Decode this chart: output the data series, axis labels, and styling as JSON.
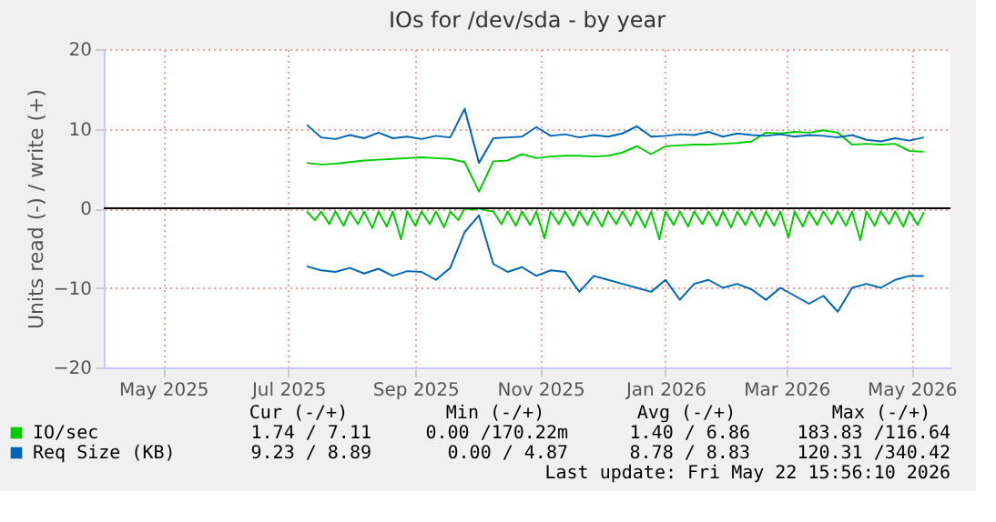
{
  "chart_data": {
    "type": "line",
    "title": "IOs for /dev/sda - by year",
    "ylabel": "Units read (-) / write (+)",
    "xlim": [
      "2025-04-16",
      "2026-06-03"
    ],
    "xticks": [
      {
        "value": "2025-05-15",
        "label": "May 2025"
      },
      {
        "value": "2025-07-15",
        "label": "Jul 2025"
      },
      {
        "value": "2025-09-15",
        "label": "Sep 2025"
      },
      {
        "value": "2025-11-15",
        "label": "Nov 2025"
      },
      {
        "value": "2026-01-15",
        "label": "Jan 2026"
      },
      {
        "value": "2026-03-15",
        "label": "Mar 2026"
      },
      {
        "value": "2026-05-15",
        "label": "May 2026"
      }
    ],
    "ylim": [
      -20,
      20
    ],
    "yticks": [
      -20,
      -10,
      0,
      10,
      20
    ],
    "grid": true,
    "legend": "bottom",
    "marker": "none",
    "line_style": "solid",
    "x": [
      "2025-07-24",
      "2025-07-31",
      "2025-08-07",
      "2025-08-14",
      "2025-08-21",
      "2025-08-28",
      "2025-09-04",
      "2025-09-11",
      "2025-09-18",
      "2025-09-25",
      "2025-10-02",
      "2025-10-09",
      "2025-10-16",
      "2025-10-23",
      "2025-10-30",
      "2025-11-06",
      "2025-11-13",
      "2025-11-20",
      "2025-11-27",
      "2025-12-04",
      "2025-12-11",
      "2025-12-18",
      "2025-12-25",
      "2026-01-01",
      "2026-01-08",
      "2026-01-15",
      "2026-01-22",
      "2026-01-29",
      "2026-02-05",
      "2026-02-12",
      "2026-02-19",
      "2026-02-26",
      "2026-03-05",
      "2026-03-12",
      "2026-03-19",
      "2026-03-26",
      "2026-04-02",
      "2026-04-09",
      "2026-04-16",
      "2026-04-23",
      "2026-04-30",
      "2026-05-07",
      "2026-05-14",
      "2026-05-21"
    ],
    "series": [
      {
        "name": "IO/sec",
        "color": "#00cc00",
        "values": [
          5.7,
          5.5,
          5.6,
          5.8,
          6.0,
          6.1,
          6.2,
          6.3,
          6.4,
          6.3,
          6.2,
          5.8,
          2.1,
          5.9,
          6.0,
          6.8,
          6.3,
          6.5,
          6.6,
          6.6,
          6.5,
          6.6,
          7.0,
          7.8,
          6.8,
          7.8,
          7.9,
          8.0,
          8.0,
          8.1,
          8.2,
          8.4,
          9.5,
          9.4,
          9.6,
          9.5,
          9.8,
          9.5,
          8.0,
          8.1,
          8.0,
          8.1,
          7.2,
          7.1
        ]
      },
      {
        "color": "#00cc00",
        "x": [
          "2025-07-24",
          "2025-07-28",
          "2025-07-31",
          "2025-08-04",
          "2025-08-07",
          "2025-08-11",
          "2025-08-14",
          "2025-08-18",
          "2025-08-21",
          "2025-08-25",
          "2025-08-28",
          "2025-09-01",
          "2025-09-04",
          "2025-09-08",
          "2025-09-11",
          "2025-09-15",
          "2025-09-18",
          "2025-09-22",
          "2025-09-25",
          "2025-09-29",
          "2025-10-02",
          "2025-10-06",
          "2025-10-09",
          "2025-10-13",
          "2025-10-16",
          "2025-10-20",
          "2025-10-23",
          "2025-10-27",
          "2025-10-30",
          "2025-11-03",
          "2025-11-06",
          "2025-11-10",
          "2025-11-13",
          "2025-11-17",
          "2025-11-20",
          "2025-11-24",
          "2025-11-27",
          "2025-12-01",
          "2025-12-04",
          "2025-12-08",
          "2025-12-11",
          "2025-12-15",
          "2025-12-18",
          "2025-12-22",
          "2025-12-25",
          "2025-12-29",
          "2026-01-01",
          "2026-01-05",
          "2026-01-08",
          "2026-01-12",
          "2026-01-15",
          "2026-01-19",
          "2026-01-22",
          "2026-01-26",
          "2026-01-29",
          "2026-02-02",
          "2026-02-05",
          "2026-02-09",
          "2026-02-12",
          "2026-02-16",
          "2026-02-19",
          "2026-02-23",
          "2026-02-26",
          "2026-03-02",
          "2026-03-05",
          "2026-03-09",
          "2026-03-12",
          "2026-03-16",
          "2026-03-19",
          "2026-03-23",
          "2026-03-26",
          "2026-03-30",
          "2026-04-02",
          "2026-04-06",
          "2026-04-09",
          "2026-04-13",
          "2026-04-16",
          "2026-04-20",
          "2026-04-23",
          "2026-04-27",
          "2026-04-30",
          "2026-05-04",
          "2026-05-07",
          "2026-05-11",
          "2026-05-14",
          "2026-05-18",
          "2026-05-21"
        ],
        "values": [
          -0.4,
          -1.5,
          -0.4,
          -2.0,
          -0.4,
          -2.2,
          -0.4,
          -2.0,
          -0.4,
          -2.5,
          -0.4,
          -2.3,
          -0.4,
          -3.9,
          -0.4,
          -2.2,
          -0.4,
          -2.0,
          -0.4,
          -2.4,
          -0.4,
          -1.5,
          0.0,
          -0.2,
          0.0,
          -0.3,
          -0.4,
          -2.0,
          -0.4,
          -2.2,
          -0.4,
          -2.1,
          -0.4,
          -3.8,
          -0.4,
          -2.0,
          -0.4,
          -2.2,
          -0.4,
          -2.1,
          -0.4,
          -2.3,
          -0.4,
          -2.0,
          -0.4,
          -2.2,
          -0.4,
          -2.4,
          -0.4,
          -3.9,
          -0.4,
          -2.1,
          -0.4,
          -2.3,
          -0.4,
          -2.0,
          -0.4,
          -2.2,
          -0.4,
          -2.4,
          -0.4,
          -2.1,
          -0.4,
          -2.3,
          -0.4,
          -2.2,
          -0.4,
          -3.7,
          -0.4,
          -2.3,
          -0.4,
          -2.1,
          -0.4,
          -2.0,
          -0.4,
          -2.2,
          -0.4,
          -4.0,
          -0.4,
          -2.2,
          -0.4,
          -2.0,
          -0.4,
          -2.3,
          -0.4,
          -2.1,
          -0.5
        ]
      },
      {
        "name": "Req Size (KB)",
        "color": "#0066b3",
        "values": [
          10.5,
          8.9,
          8.7,
          9.2,
          8.8,
          9.5,
          8.8,
          9.0,
          8.7,
          9.1,
          8.9,
          12.5,
          5.7,
          8.8,
          8.9,
          9.0,
          10.2,
          9.1,
          9.3,
          8.9,
          9.2,
          9.0,
          9.4,
          10.3,
          9.0,
          9.1,
          9.3,
          9.2,
          9.6,
          9.0,
          9.4,
          9.2,
          9.1,
          9.3,
          9.0,
          9.2,
          9.1,
          8.9,
          9.2,
          8.6,
          8.4,
          8.8,
          8.5,
          8.9
        ]
      },
      {
        "color": "#0066b3",
        "values": [
          -7.3,
          -7.8,
          -8.0,
          -7.5,
          -8.2,
          -7.6,
          -8.5,
          -7.9,
          -8.0,
          -9.0,
          -7.5,
          -3.0,
          -0.9,
          -7.0,
          -8.0,
          -7.4,
          -8.5,
          -7.8,
          -8.0,
          -10.5,
          -8.5,
          -9.0,
          -9.5,
          -10.0,
          -10.5,
          -9.0,
          -11.5,
          -9.5,
          -9.0,
          -10.0,
          -9.5,
          -10.2,
          -11.5,
          -10.0,
          -11.0,
          -12.0,
          -11.0,
          -13.0,
          -10.0,
          -9.5,
          -10.0,
          -9.0,
          -8.5,
          -8.5
        ]
      }
    ],
    "ref_lines": [
      {
        "axis": "y",
        "value": 0,
        "color": "#000000"
      }
    ],
    "annotations": [
      "Cur (-/+)",
      "Min (-/+)",
      "Avg (-/+)",
      "Max (-/+)",
      "1.74 /  7.11",
      "0.00 /170.22m",
      "1.40 /  6.86",
      "183.83 /116.64",
      "9.23 /  8.89",
      "0.00 /  4.87",
      "8.78 /  8.83",
      "120.31 /340.42",
      "Last update: Fri May 22 15:56:10 2026"
    ]
  }
}
